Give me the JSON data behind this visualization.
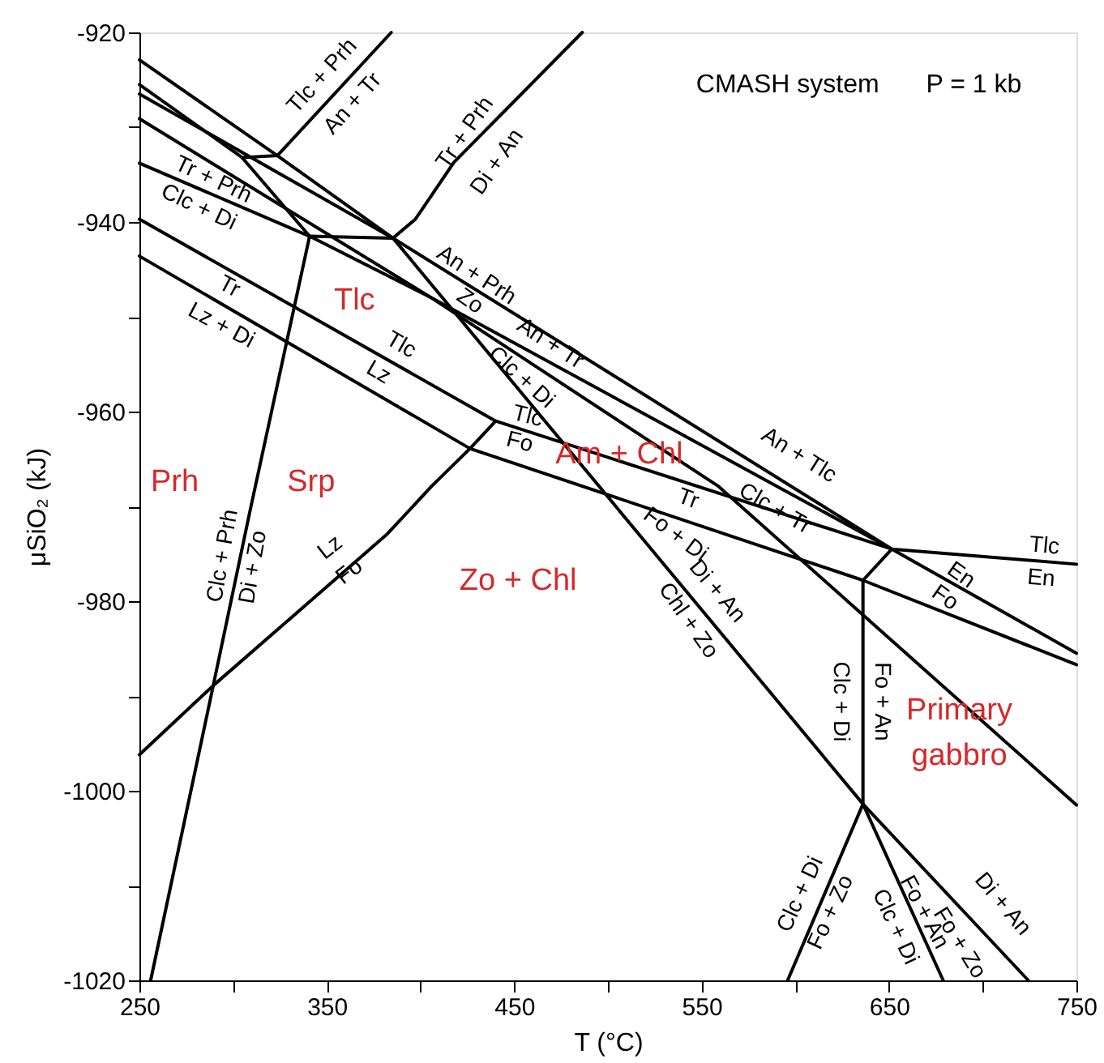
{
  "chart_data": {
    "type": "line",
    "xlabel": "T (°C)",
    "ylabel": "μSiO₂ (kJ)",
    "xlim": [
      250,
      750
    ],
    "ylim": [
      -1020,
      -920
    ],
    "xticks": [
      250,
      {
        "value": 300,
        "label": null
      },
      350,
      {
        "value": 400,
        "label": null
      },
      450,
      {
        "value": 500,
        "label": null
      },
      550,
      {
        "value": 600,
        "label": null
      },
      650,
      {
        "value": 700,
        "label": null
      },
      750
    ],
    "yticks": [
      -1020,
      {
        "value": -1010,
        "label": null
      },
      -1000,
      {
        "value": -990,
        "label": null
      },
      -980,
      {
        "value": -970,
        "label": null
      },
      -960,
      {
        "value": -950,
        "label": null
      },
      -940,
      {
        "value": -930,
        "label": null
      },
      -920
    ],
    "grid": false,
    "marker": "none",
    "line_style": "solid",
    "series": [
      {
        "color": "#000000",
        "x": [
          250,
          323.6,
          385.3,
          651.5,
          750
        ],
        "values": [
          -922.9,
          -933.0,
          -941.7,
          -974.5,
          -985.5
        ]
      },
      {
        "color": "#000000",
        "x": [
          250,
          304.8,
          340.8
        ],
        "values": [
          -925.5,
          -933.2,
          -941.5
        ]
      },
      {
        "color": "#000000",
        "x": [
          250,
          385.3,
          636.1,
          724.3
        ],
        "values": [
          -926.5,
          -941.7,
          -1001.4,
          -1020
        ]
      },
      {
        "color": "#000000",
        "x": [
          250,
          405,
          651.5
        ],
        "values": [
          -929.1,
          -947.9,
          -974.5
        ]
      },
      {
        "color": "#000000",
        "x": [
          304.8,
          323.6,
          384.4
        ],
        "values": [
          -933.2,
          -933.0,
          -920
        ]
      },
      {
        "color": "#000000",
        "x": [
          385.3,
          397.3,
          417.8,
          486.3
        ],
        "values": [
          -941.7,
          -939.7,
          -933.7,
          -920
        ]
      },
      {
        "color": "#000000",
        "x": [
          385.3,
          340.8,
          309.1,
          289.4,
          256
        ],
        "values": [
          -941.7,
          -941.5,
          -970.4,
          -988.9,
          -1020
        ]
      },
      {
        "color": "#000000",
        "x": [
          250,
          340.8,
          405,
          559.1,
          750
        ],
        "values": [
          -933.8,
          -941.5,
          -947.9,
          -967.9,
          -1001.5
        ]
      },
      {
        "color": "#000000",
        "x": [
          250,
          440.1,
          651.5,
          750
        ],
        "values": [
          -939.7,
          -961.0,
          -974.5,
          -976.1
        ]
      },
      {
        "color": "#000000",
        "x": [
          250,
          426.4,
          636.1,
          750
        ],
        "values": [
          -943.6,
          -963.9,
          -977.8,
          -986.7
        ]
      },
      {
        "color": "#000000",
        "x": [
          250,
          289.4,
          381.8,
          405.8,
          426.4,
          440.1
        ],
        "values": [
          -996.2,
          -988.9,
          -973.0,
          -967.9,
          -963.9,
          -961.0
        ]
      },
      {
        "color": "#000000",
        "x": [
          651.5,
          636.1,
          636.1,
          595.9
        ],
        "values": [
          -974.5,
          -977.8,
          -1001.4,
          -1020
        ]
      },
      {
        "color": "#000000",
        "x": [
          636.1,
          678.9
        ],
        "values": [
          -1001.4,
          -1020
        ]
      }
    ],
    "annotations": [
      "CMASH system",
      "P = 1 kb",
      "Tlc + Prh",
      "An + Tr",
      "Tr + Prh",
      "Di + An",
      "Tr + Prh",
      "Clc + Di",
      "Tr",
      "Lz + Di",
      "Tlc",
      "Lz",
      "An + Prh",
      "Zo",
      "An + Tr",
      "Clc + Di",
      "Tlc",
      "Fo",
      "An + Tlc",
      "Clc + Tr",
      "Tr",
      "Fo + Di",
      "Di + An",
      "Chl + Zo",
      "Tlc",
      "En",
      "En",
      "Fo",
      "Clc + Di",
      "Fo + An",
      "Clc + Prh",
      "Di + Zo",
      "Lz",
      "Fo",
      "Clc + Di",
      "Fo + Zo",
      "Fo + An",
      "Clc + Di",
      "Di + An",
      "Fo + Zo",
      "Tlc",
      "Prh",
      "Srp",
      "Am + Chl",
      "Zo + Chl",
      "Primary",
      "gabbro"
    ]
  }
}
